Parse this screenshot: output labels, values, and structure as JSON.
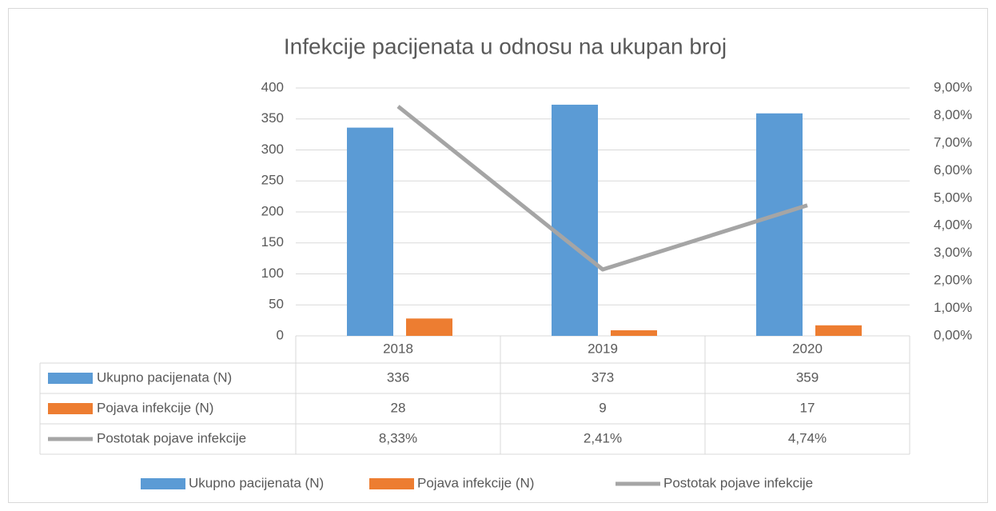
{
  "chart_data": {
    "type": "bar",
    "title": "Infekcije pacijenata u odnosu na ukupan broj",
    "categories": [
      "2018",
      "2019",
      "2020"
    ],
    "series": [
      {
        "name": "Ukupno pacijenata (N)",
        "color": "#5b9bd5",
        "values": [
          336,
          373,
          359
        ]
      },
      {
        "name": "Pojava infekcije (N)",
        "color": "#ed7d31",
        "values": [
          28,
          9,
          17
        ]
      },
      {
        "name": "Postotak pojave infekcije",
        "color": "#a5a5a5",
        "type": "line",
        "axis": "y2",
        "values": [
          8.33,
          2.41,
          4.74
        ],
        "value_labels": [
          "8,33%",
          "2,41%",
          "4,74%"
        ]
      }
    ],
    "ylim": [
      0,
      400
    ],
    "yticks": [
      0,
      50,
      100,
      150,
      200,
      250,
      300,
      350,
      400
    ],
    "y2lim": [
      0,
      9
    ],
    "y2ticks": [
      {
        "value": 0,
        "label": "0,00%"
      },
      {
        "value": 1,
        "label": "1,00%"
      },
      {
        "value": 2,
        "label": "2,00%"
      },
      {
        "value": 3,
        "label": "3,00%"
      },
      {
        "value": 4,
        "label": "4,00%"
      },
      {
        "value": 5,
        "label": "5,00%"
      },
      {
        "value": 6,
        "label": "6,00%"
      },
      {
        "value": 7,
        "label": "7,00%"
      },
      {
        "value": 8,
        "label": "8,00%"
      },
      {
        "value": 9,
        "label": "9,00%"
      }
    ],
    "grid": true,
    "legend": "bottom"
  }
}
